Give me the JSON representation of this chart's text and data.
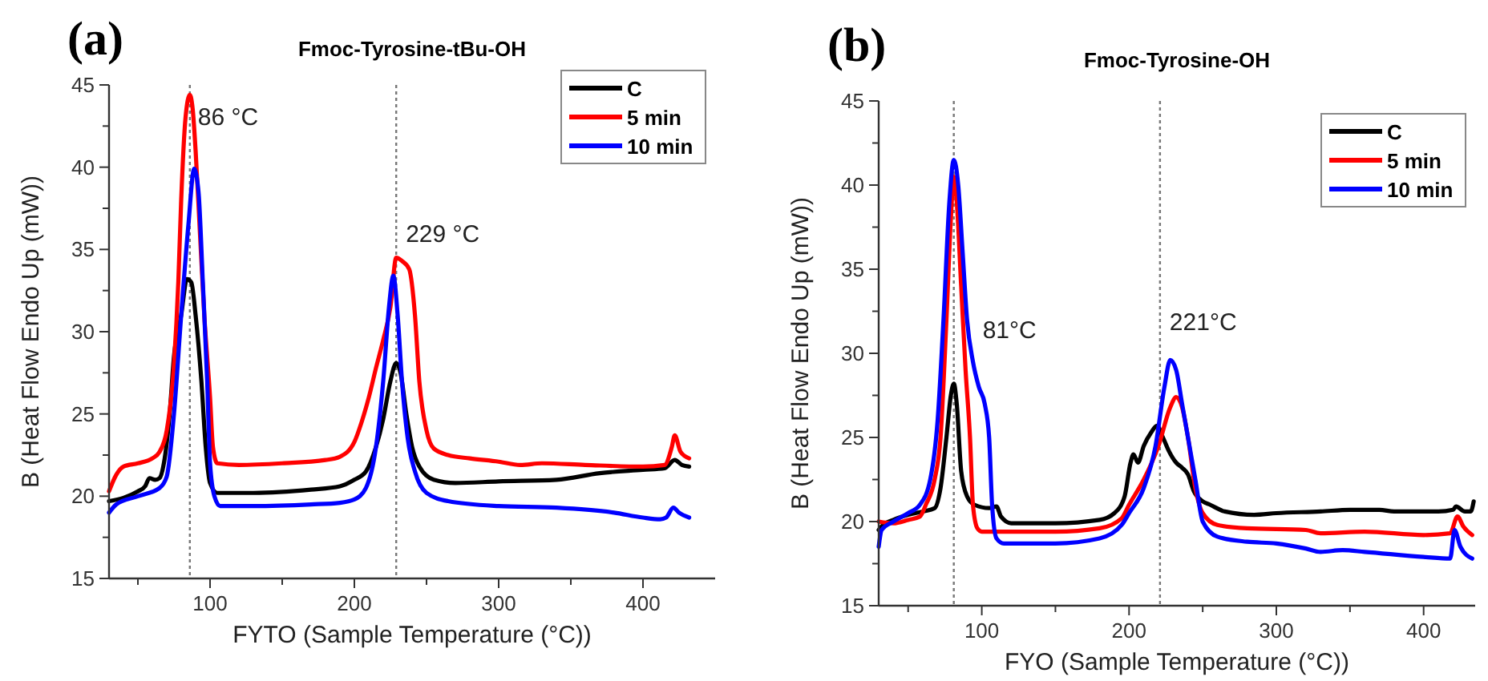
{
  "chart_data": [
    {
      "type": "line",
      "title": "Fmoc-Tyrosine-tBu-OH",
      "xlabel": "FYTO (Sample Temperature (°C))",
      "ylabel": "B (Heat Flow Endo Up (mW))",
      "xlim": [
        30,
        450
      ],
      "xticks": [
        {
          "value": 50,
          "label": null
        },
        100,
        {
          "value": 150,
          "label": null
        },
        200,
        {
          "value": 250,
          "label": null
        },
        300,
        {
          "value": 350,
          "label": null
        },
        400
      ],
      "ylim": [
        15,
        45
      ],
      "yticks": [
        15,
        {
          "value": 17.5,
          "label": null
        },
        20,
        {
          "value": 22.5,
          "label": null
        },
        25,
        {
          "value": 27.5,
          "label": null
        },
        30,
        {
          "value": 32.5,
          "label": null
        },
        35,
        {
          "value": 37.5,
          "label": null
        },
        40,
        {
          "value": 42.5,
          "label": null
        },
        45
      ],
      "grid": false,
      "legend": "top right",
      "marker": "none",
      "line_style": "solid",
      "ref_lines": [
        {
          "axis": "x",
          "value": 86,
          "label": "86 °C",
          "line_style": "dotted"
        },
        {
          "axis": "x",
          "value": 229,
          "label": "229 °C",
          "line_style": "dotted"
        }
      ],
      "annotations": [
        "(a)"
      ],
      "series": [
        {
          "name": "C",
          "color": "#000000",
          "x": [
            30,
            40,
            50,
            55,
            58,
            62,
            65,
            68,
            72,
            75,
            80,
            84,
            87,
            90,
            94,
            97,
            100,
            105,
            130,
            170,
            190,
            200,
            208,
            215,
            220,
            225,
            229,
            232,
            236,
            240,
            245,
            255,
            270,
            300,
            340,
            370,
            400,
            415,
            422,
            427,
            432
          ],
          "values": [
            19.7,
            19.9,
            20.3,
            20.6,
            21.1,
            21.0,
            21.1,
            22,
            25,
            28.5,
            31,
            33.2,
            33,
            31,
            27,
            23,
            20.8,
            20.2,
            20.2,
            20.4,
            20.6,
            21.0,
            21.5,
            23,
            24.7,
            27,
            28.1,
            27.5,
            25,
            23,
            21.8,
            21.0,
            20.8,
            20.9,
            21.0,
            21.4,
            21.6,
            21.7,
            22.2,
            21.9,
            21.8
          ]
        },
        {
          "name": "5 min",
          "color": "#ff0000",
          "x": [
            30,
            35,
            40,
            50,
            60,
            65,
            70,
            75,
            78,
            80,
            83,
            86,
            88,
            90,
            93,
            96,
            100,
            102,
            105,
            120,
            150,
            180,
            190,
            200,
            205,
            210,
            215,
            220,
            225,
            229,
            233,
            238,
            242,
            245,
            250,
            255,
            265,
            280,
            300,
            315,
            330,
            360,
            400,
            415,
            420,
            422,
            426,
            432
          ],
          "values": [
            20.3,
            21.3,
            21.8,
            22.0,
            22.3,
            22.7,
            24,
            28,
            33,
            38,
            43,
            44.4,
            43.5,
            41,
            36,
            31,
            26,
            23,
            22.0,
            21.9,
            22.0,
            22.2,
            22.4,
            23.3,
            24.5,
            26,
            27.8,
            29.5,
            31.5,
            34.5,
            34.3,
            33.8,
            31,
            27,
            24,
            22.9,
            22.5,
            22.3,
            22.1,
            21.9,
            22.0,
            21.9,
            21.8,
            21.9,
            23.0,
            23.7,
            22.7,
            22.3
          ]
        },
        {
          "name": "10 min",
          "color": "#0000ff",
          "x": [
            30,
            35,
            50,
            65,
            70,
            75,
            80,
            85,
            89,
            92,
            95,
            98,
            100,
            103,
            107,
            130,
            170,
            190,
            200,
            208,
            215,
            220,
            224,
            227,
            230,
            233,
            237,
            242,
            250,
            265,
            300,
            340,
            380,
            400,
            412,
            416,
            421,
            425,
            432
          ],
          "values": [
            19.0,
            19.5,
            20.0,
            20.5,
            21.2,
            25,
            31,
            36.5,
            39.9,
            38.5,
            33,
            27,
            22,
            20,
            19.4,
            19.4,
            19.5,
            19.6,
            19.8,
            20.5,
            23,
            27,
            31.5,
            33.4,
            31,
            27,
            23.5,
            21.5,
            20.2,
            19.7,
            19.4,
            19.3,
            19.0,
            18.7,
            18.6,
            18.7,
            19.3,
            19.0,
            18.7
          ]
        }
      ]
    },
    {
      "type": "line",
      "title": "Fmoc-Tyrosine-OH",
      "xlabel": "FYO (Sample Temperature (°C))",
      "ylabel": "B (Heat Flow Endo Up (mW))",
      "xlim": [
        30,
        435
      ],
      "xticks": [
        {
          "value": 50,
          "label": null
        },
        100,
        {
          "value": 150,
          "label": null
        },
        200,
        {
          "value": 250,
          "label": null
        },
        300,
        {
          "value": 350,
          "label": null
        },
        400
      ],
      "ylim": [
        15,
        45
      ],
      "yticks": [
        15,
        {
          "value": 17.5,
          "label": null
        },
        20,
        {
          "value": 22.5,
          "label": null
        },
        25,
        {
          "value": 27.5,
          "label": null
        },
        30,
        {
          "value": 32.5,
          "label": null
        },
        35,
        {
          "value": 37.5,
          "label": null
        },
        40,
        {
          "value": 42.5,
          "label": null
        },
        45
      ],
      "grid": false,
      "legend": "top right",
      "marker": "none",
      "line_style": "solid",
      "ref_lines": [
        {
          "axis": "x",
          "value": 81,
          "label": "81°C",
          "line_style": "dotted"
        },
        {
          "axis": "x",
          "value": 221,
          "label": "221°C",
          "line_style": "dotted"
        }
      ],
      "annotations": [
        "(b)"
      ],
      "series": [
        {
          "name": "C",
          "color": "#000000",
          "x": [
            30,
            33,
            40,
            50,
            60,
            68,
            72,
            76,
            79,
            81,
            83,
            86,
            90,
            95,
            105,
            110,
            113,
            120,
            150,
            180,
            190,
            197,
            201,
            203,
            206,
            210,
            215,
            219,
            223,
            227,
            232,
            236,
            240,
            244,
            250,
            255,
            265,
            285,
            300,
            330,
            350,
            370,
            380,
            410,
            420,
            422,
            428,
            432,
            434
          ],
          "values": [
            19.5,
            19.8,
            20.1,
            20.4,
            20.6,
            20.8,
            22,
            25,
            27.5,
            28.2,
            27,
            23,
            21.5,
            21.0,
            20.8,
            20.9,
            20.3,
            19.9,
            19.9,
            20.1,
            20.5,
            21.5,
            23.5,
            24,
            23.5,
            24.5,
            25.3,
            25.7,
            25,
            24.2,
            23.5,
            23.2,
            22.8,
            21.8,
            21.2,
            21.0,
            20.6,
            20.4,
            20.5,
            20.6,
            20.7,
            20.7,
            20.6,
            20.6,
            20.7,
            20.9,
            20.6,
            20.6,
            21.2
          ]
        },
        {
          "name": "5 min",
          "color": "#ff0000",
          "x": [
            30,
            40,
            50,
            58,
            62,
            68,
            72,
            76,
            79,
            81,
            83,
            86,
            89,
            92,
            94,
            97,
            100,
            150,
            180,
            195,
            200,
            210,
            220,
            228,
            232,
            236,
            240,
            245,
            250,
            260,
            280,
            320,
            330,
            360,
            400,
            418,
            423,
            427,
            433
          ],
          "values": [
            20.0,
            19.9,
            20.1,
            20.3,
            21,
            22.5,
            25,
            32,
            38,
            40.5,
            39,
            34,
            29,
            25,
            21,
            19.6,
            19.4,
            19.4,
            19.6,
            20.2,
            21,
            22.5,
            24.5,
            26.8,
            27.4,
            26.8,
            25,
            22,
            20.5,
            19.8,
            19.6,
            19.5,
            19.3,
            19.4,
            19.2,
            19.3,
            20.3,
            19.7,
            19.2
          ]
        },
        {
          "name": "10 min",
          "color": "#0000ff",
          "x": [
            30,
            32,
            40,
            50,
            58,
            65,
            70,
            74,
            78,
            81,
            84,
            87,
            90,
            94,
            98,
            102,
            105,
            107,
            110,
            115,
            150,
            180,
            195,
            200,
            210,
            218,
            224,
            228,
            232,
            236,
            240,
            245,
            250,
            260,
            280,
            300,
            320,
            330,
            345,
            360,
            400,
            418,
            421,
            425,
            433
          ],
          "values": [
            18.5,
            19.5,
            20,
            20.5,
            21,
            22.5,
            26,
            32,
            39,
            41.5,
            40,
            36,
            32,
            29.5,
            28,
            27,
            25,
            21,
            19.0,
            18.7,
            18.7,
            19.0,
            19.8,
            20.5,
            22.0,
            24.5,
            28,
            29.6,
            29,
            27,
            25,
            22.5,
            20,
            19.1,
            18.8,
            18.7,
            18.4,
            18.2,
            18.3,
            18.2,
            17.9,
            17.8,
            19.5,
            18.5,
            17.8
          ]
        }
      ]
    }
  ]
}
